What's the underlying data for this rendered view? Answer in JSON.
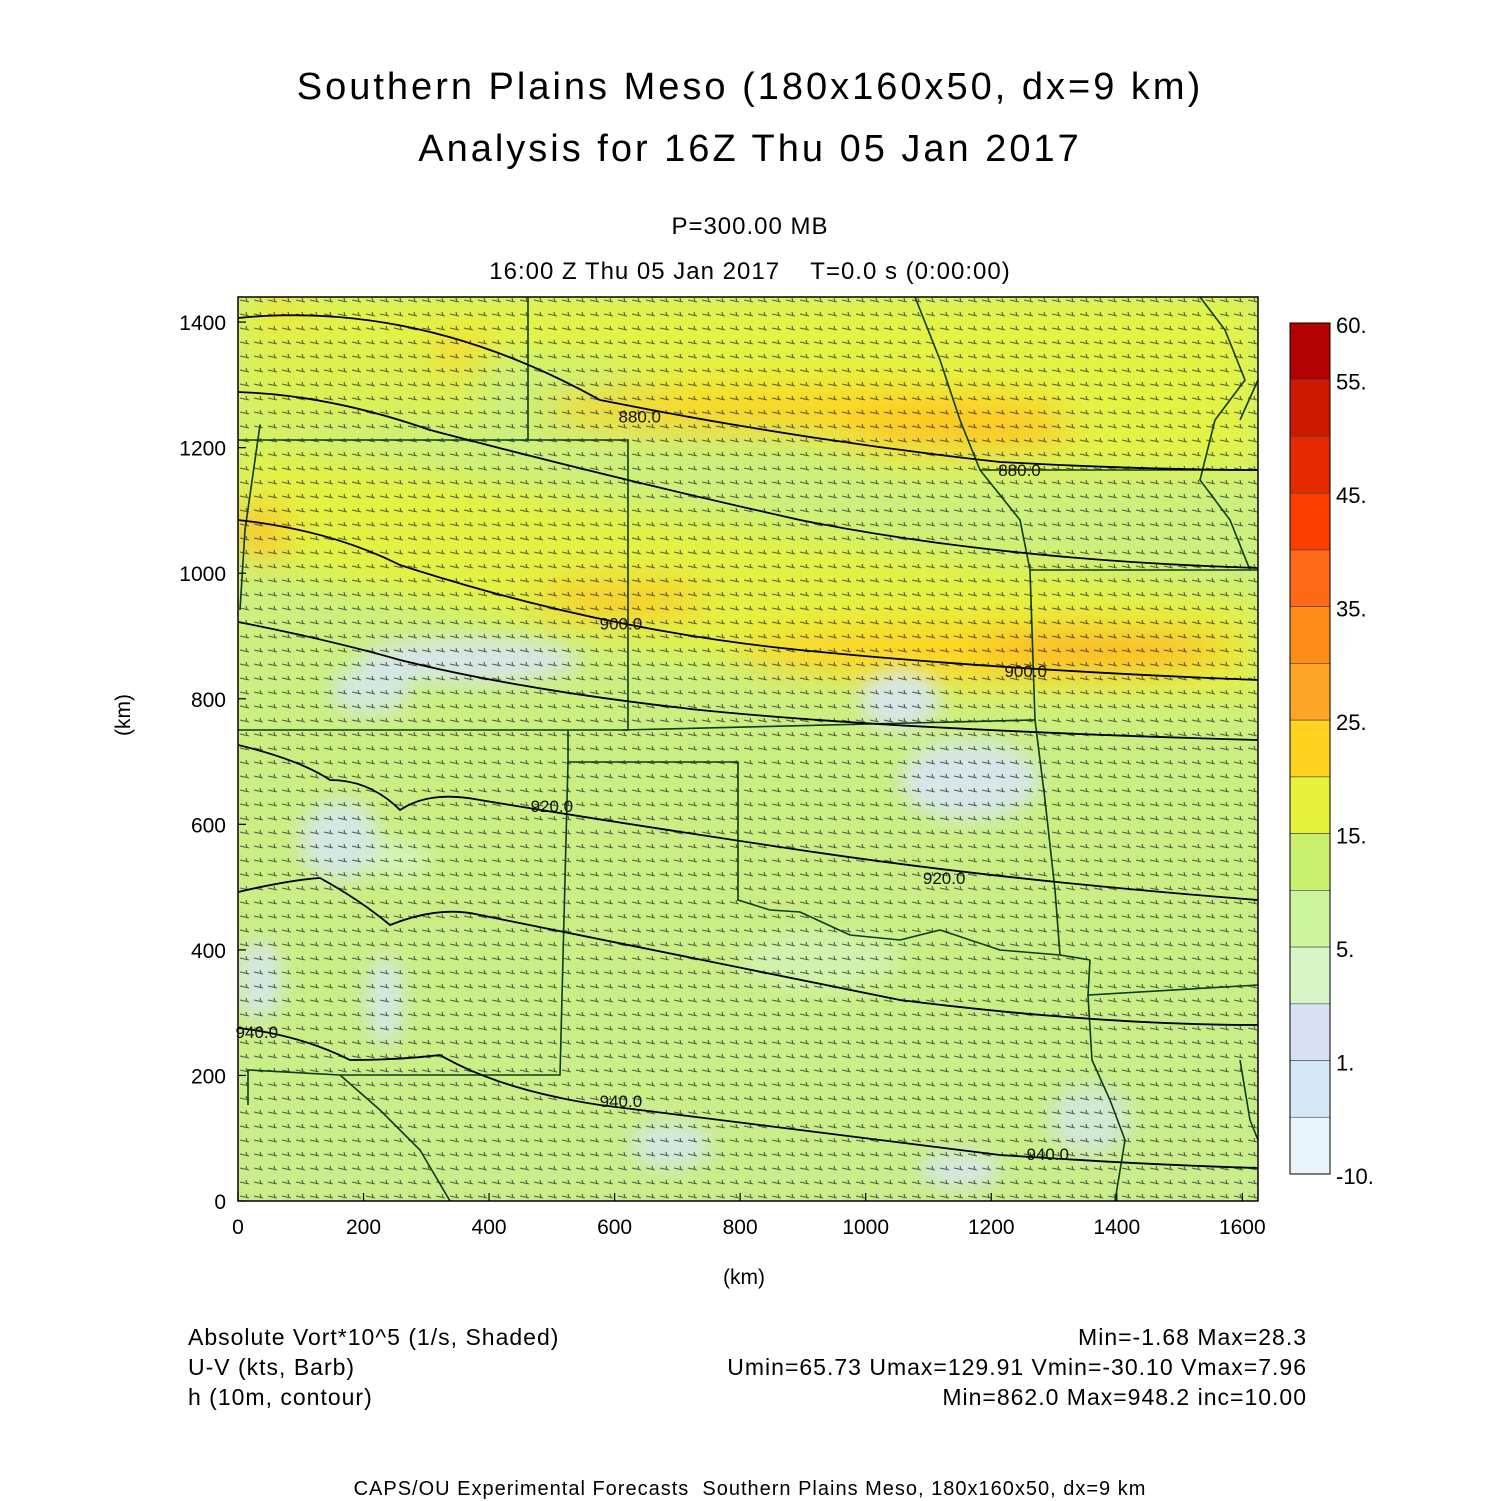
{
  "title": {
    "line1": "Southern Plains Meso (180x160x50, dx=9 km)",
    "line2": "Analysis for 16Z Thu 05 Jan 2017"
  },
  "subtitle": {
    "level": "P=300.00 MB",
    "time": "16:00 Z Thu 05 Jan 2017    T=0.0 s (0:00:00)"
  },
  "chart_data": {
    "type": "heatmap",
    "xlabel": "(km)",
    "ylabel": "(km)",
    "xlim": [
      0,
      1625
    ],
    "ylim": [
      0,
      1440
    ],
    "x_ticks": [
      "0",
      "200",
      "400",
      "600",
      "800",
      "1000",
      "1200",
      "1400",
      "1600"
    ],
    "y_ticks": [
      "0",
      "200",
      "400",
      "600",
      "800",
      "1000",
      "1200",
      "1400"
    ],
    "colorbar": {
      "labels": [
        "60.",
        "55.",
        "45.",
        "35.",
        "25.",
        "15.",
        "5.",
        "1.",
        "-10."
      ],
      "colors": [
        "#b30000",
        "#cc1a00",
        "#e62a00",
        "#ff3d00",
        "#ff6a1a",
        "#ff8c1a",
        "#ffa526",
        "#ffd21f",
        "#e6f23a",
        "#c8ef6e",
        "#cdf59d",
        "#d6f5c6",
        "#d8e0f5",
        "#d6e8f8",
        "#e8f6fc"
      ]
    },
    "contours": [
      {
        "label": "880.0",
        "x": 640,
        "y": 1240
      },
      {
        "label": "880.0",
        "x": 1245,
        "y": 1155
      },
      {
        "label": "900.0",
        "x": 610,
        "y": 910
      },
      {
        "label": "900.0",
        "x": 1255,
        "y": 835
      },
      {
        "label": "920.0",
        "x": 500,
        "y": 620
      },
      {
        "label": "920.0",
        "x": 1125,
        "y": 505
      },
      {
        "label": "940.0",
        "x": 30,
        "y": 260
      },
      {
        "label": "940.0",
        "x": 610,
        "y": 150
      },
      {
        "label": "940.0",
        "x": 1290,
        "y": 65
      }
    ]
  },
  "legend": {
    "field1": "Absolute Vort*10^5 (1/s, Shaded)",
    "field1_stats": "Min=-1.68 Max=28.3",
    "field2": "U-V (kts, Barb)",
    "field2_stats": "Umin=65.73 Umax=129.91 Vmin=-30.10 Vmax=7.96",
    "field3": "h (10m, contour)",
    "field3_stats": "Min=862.0 Max=948.2 inc=10.00"
  },
  "footer": "CAPS/OU Experimental Forecasts  Southern Plains Meso, 180x160x50, dx=9 km"
}
